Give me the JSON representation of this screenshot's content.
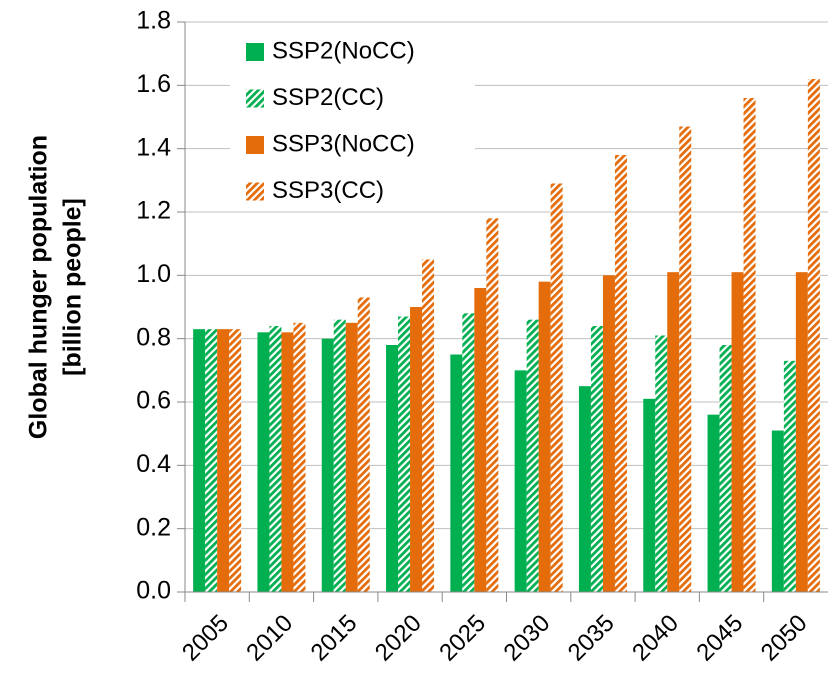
{
  "chart_data": {
    "type": "bar",
    "ylabel": [
      "Global hunger population",
      "[billion people]"
    ],
    "categories": [
      "2005",
      "2010",
      "2015",
      "2020",
      "2025",
      "2030",
      "2035",
      "2040",
      "2045",
      "2050"
    ],
    "series": [
      {
        "name": "SSP2(NoCC)",
        "color": "#00b050",
        "hatched": false,
        "values": [
          0.83,
          0.82,
          0.8,
          0.78,
          0.75,
          0.7,
          0.65,
          0.61,
          0.56,
          0.51
        ]
      },
      {
        "name": "SSP2(CC)",
        "color": "#00b050",
        "hatched": true,
        "values": [
          0.83,
          0.84,
          0.86,
          0.87,
          0.88,
          0.86,
          0.84,
          0.81,
          0.78,
          0.73
        ]
      },
      {
        "name": "SSP3(NoCC)",
        "color": "#e46c0a",
        "hatched": false,
        "values": [
          0.83,
          0.82,
          0.85,
          0.9,
          0.96,
          0.98,
          1.0,
          1.01,
          1.01,
          1.01
        ]
      },
      {
        "name": "SSP3(CC)",
        "color": "#e46c0a",
        "hatched": true,
        "values": [
          0.83,
          0.85,
          0.93,
          1.05,
          1.18,
          1.29,
          1.38,
          1.47,
          1.56,
          1.62
        ]
      }
    ],
    "ylim": [
      0,
      1.8
    ],
    "yticks": [
      {
        "value": 0,
        "label": "0.0"
      },
      {
        "value": 0.2,
        "label": "0.2"
      },
      {
        "value": 0.4,
        "label": "0.4"
      },
      {
        "value": 0.6,
        "label": "0.6"
      },
      {
        "value": 0.8,
        "label": "0.8"
      },
      {
        "value": 1.0,
        "label": "1.0"
      },
      {
        "value": 1.2,
        "label": "1.2"
      },
      {
        "value": 1.4,
        "label": "1.4"
      },
      {
        "value": 1.6,
        "label": "1.6"
      },
      {
        "value": 1.8,
        "label": "1.8"
      }
    ],
    "grid": true,
    "legend": "top-left"
  }
}
